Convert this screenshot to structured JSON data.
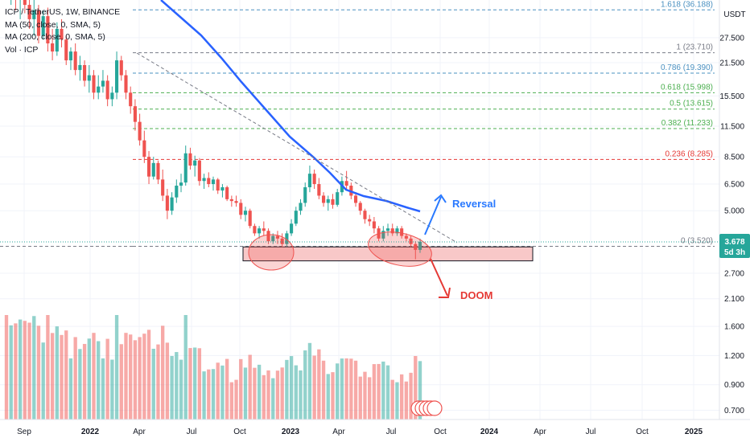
{
  "legend": {
    "symbol": "ICP / TetherUS, 1W, BINANCE",
    "ma50": "MA (50, close, 0, SMA, 5)",
    "ma200": "MA (200, close, 0, SMA, 5)",
    "volume": "Vol · ICP"
  },
  "currency_label": "USDT",
  "last_price": {
    "value": "3.678",
    "countdown": "5d 3h",
    "color": "#26a69a"
  },
  "chart_data": {
    "type": "candlestick",
    "scale": "log",
    "y_ticks": [
      "27.500",
      "21.500",
      "15.500",
      "11.500",
      "8.500",
      "6.500",
      "5.000",
      "2.700",
      "2.100",
      "1.600",
      "1.200",
      "0.900",
      "0.700"
    ],
    "x_ticks": [
      "Sep",
      "2022",
      "Apr",
      "Jul",
      "Oct",
      "2023",
      "Apr",
      "Jul",
      "Oct",
      "2024",
      "Apr",
      "Jul",
      "Oct",
      "2025"
    ],
    "fib_levels": [
      {
        "label": "1.618 (36.188)",
        "value": 36.188,
        "color": "#4a90c0"
      },
      {
        "label": "1 (23.710)",
        "value": 23.71,
        "color": "#787b86"
      },
      {
        "label": "0.786 (19.390)",
        "value": 19.39,
        "color": "#4a90c0"
      },
      {
        "label": "0.618 (15.998)",
        "value": 15.998,
        "color": "#4caf50"
      },
      {
        "label": "0.5 (13.615)",
        "value": 13.615,
        "color": "#4caf50"
      },
      {
        "label": "0.382 (11.233)",
        "value": 11.233,
        "color": "#4caf50"
      },
      {
        "label": "0.236 (8.285)",
        "value": 8.285,
        "color": "#e53935"
      },
      {
        "label": "0 (3.520)",
        "value": 3.52,
        "color": "#787b86"
      }
    ],
    "annotations": {
      "reversal": "Reversal",
      "doom": "DOOM"
    },
    "colors": {
      "up": "#26a69a",
      "down": "#ef5350",
      "ma50": "#2962ff",
      "support": "#f8c8c8"
    },
    "ohlc_weekly_approx": [
      [
        60,
        62,
        40,
        45
      ],
      [
        45,
        55,
        38,
        50
      ],
      [
        50,
        52,
        36,
        40
      ],
      [
        40,
        48,
        33,
        46
      ],
      [
        46,
        50,
        35,
        38
      ],
      [
        38,
        42,
        30,
        33
      ],
      [
        33,
        40,
        28,
        36
      ],
      [
        36,
        38,
        26,
        28
      ],
      [
        28,
        36,
        27,
        34
      ],
      [
        34,
        37,
        24,
        26
      ],
      [
        26,
        30,
        22,
        24
      ],
      [
        24,
        32,
        23,
        30
      ],
      [
        30,
        33,
        25,
        27
      ],
      [
        27,
        28,
        21,
        22
      ],
      [
        22,
        25,
        20,
        24
      ],
      [
        24,
        26,
        19,
        20
      ],
      [
        20,
        23,
        18,
        21
      ],
      [
        21,
        22,
        17,
        18
      ],
      [
        18,
        21,
        16,
        19
      ],
      [
        19,
        20,
        15,
        16
      ],
      [
        16,
        19,
        15,
        17
      ],
      [
        17,
        20,
        16,
        18
      ],
      [
        18,
        19,
        14,
        15
      ],
      [
        15,
        17,
        14,
        16
      ],
      [
        16,
        24,
        15,
        22
      ],
      [
        22,
        23,
        18,
        19
      ],
      [
        19,
        20,
        15,
        16
      ],
      [
        16,
        17,
        13,
        14
      ],
      [
        14,
        15,
        11,
        12
      ],
      [
        12,
        13,
        9.5,
        10
      ],
      [
        10,
        11,
        8,
        8.5
      ],
      [
        8.5,
        9,
        6.5,
        7
      ],
      [
        7,
        8.5,
        6.8,
        8
      ],
      [
        8,
        8.2,
        6.5,
        6.8
      ],
      [
        6.8,
        7.5,
        5.5,
        5.8
      ],
      [
        5.8,
        6.2,
        4.6,
        5
      ],
      [
        5,
        6,
        4.8,
        5.7
      ],
      [
        5.7,
        6.8,
        5.4,
        6.4
      ],
      [
        6.4,
        7.2,
        6,
        6.6
      ],
      [
        6.6,
        9.5,
        6.4,
        8.8
      ],
      [
        8.8,
        9.3,
        7.5,
        7.8
      ],
      [
        7.8,
        8.6,
        7,
        8.2
      ],
      [
        8.2,
        8.4,
        6.4,
        6.7
      ],
      [
        6.7,
        7.2,
        6.2,
        6.9
      ],
      [
        6.9,
        7.3,
        6.3,
        6.5
      ],
      [
        6.5,
        7,
        6.1,
        6.8
      ],
      [
        6.8,
        6.9,
        5.9,
        6.1
      ],
      [
        6.1,
        6.5,
        5.7,
        6.3
      ],
      [
        6.3,
        6.4,
        5.5,
        5.6
      ],
      [
        5.6,
        5.8,
        5.2,
        5.5
      ],
      [
        5.5,
        5.8,
        5.2,
        5.4
      ],
      [
        5.4,
        5.6,
        4.6,
        4.8
      ],
      [
        4.8,
        5.2,
        4.5,
        5
      ],
      [
        5,
        5.1,
        4.2,
        4.3
      ],
      [
        4.3,
        4.4,
        3.9,
        4
      ],
      [
        4,
        4.3,
        3.8,
        4.2
      ],
      [
        4.2,
        4.5,
        3.9,
        4.1
      ],
      [
        4.1,
        4.2,
        3.6,
        3.7
      ],
      [
        3.7,
        4,
        3.6,
        3.9
      ],
      [
        3.9,
        4.1,
        3.6,
        3.8
      ],
      [
        3.8,
        4,
        3.5,
        3.6
      ],
      [
        3.6,
        4.1,
        3.5,
        4
      ],
      [
        4,
        4.6,
        3.9,
        4.4
      ],
      [
        4.4,
        5.2,
        4.3,
        5
      ],
      [
        5,
        5.6,
        4.8,
        5.4
      ],
      [
        5.4,
        6.6,
        5.2,
        6.3
      ],
      [
        6.3,
        7.8,
        6,
        7.2
      ],
      [
        7.2,
        7.5,
        6.2,
        6.5
      ],
      [
        6.5,
        6.9,
        5.6,
        5.8
      ],
      [
        5.8,
        6,
        5.2,
        5.4
      ],
      [
        5.4,
        5.8,
        5,
        5.6
      ],
      [
        5.6,
        5.9,
        5.1,
        5.3
      ],
      [
        5.3,
        6.2,
        5.2,
        6
      ],
      [
        6,
        7,
        5.8,
        6.7
      ],
      [
        6.7,
        7.4,
        6.2,
        6.4
      ],
      [
        6.4,
        6.6,
        5.6,
        5.8
      ],
      [
        5.8,
        6,
        5.2,
        5.4
      ],
      [
        5.4,
        5.5,
        4.8,
        5
      ],
      [
        5,
        5.1,
        4.4,
        4.6
      ],
      [
        4.6,
        4.8,
        4.3,
        4.5
      ],
      [
        4.5,
        4.7,
        4,
        4.2
      ],
      [
        4.2,
        4.3,
        3.7,
        3.8
      ],
      [
        3.8,
        4.3,
        3.7,
        4.1
      ],
      [
        4.1,
        4.4,
        3.9,
        4.2
      ],
      [
        4.2,
        4.4,
        3.9,
        4
      ],
      [
        4,
        4.3,
        3.9,
        4.2
      ],
      [
        4.2,
        4.3,
        3.8,
        3.9
      ],
      [
        3.9,
        4,
        3.7,
        3.8
      ],
      [
        3.8,
        3.9,
        3.5,
        3.6
      ],
      [
        3.6,
        3.7,
        3.1,
        3.4
      ],
      [
        3.4,
        3.8,
        3.3,
        3.68
      ]
    ]
  }
}
